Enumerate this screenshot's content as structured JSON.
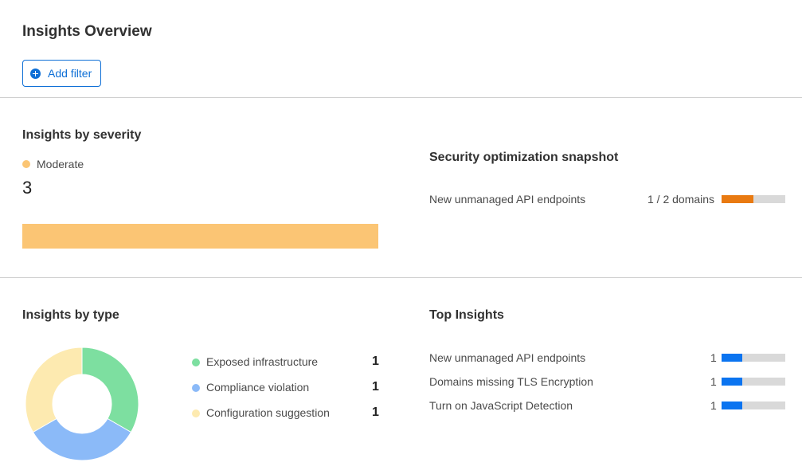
{
  "header": {
    "title": "Insights Overview",
    "add_filter": "Add filter",
    "add_icon": "plus-circle-icon"
  },
  "severity": {
    "title": "Insights by severity",
    "legend": "Moderate",
    "count": "3",
    "color": "#fbc574"
  },
  "snapshot": {
    "title": "Security optimization snapshot",
    "items": [
      {
        "label": "New unmanaged API endpoints",
        "value": "1 / 2 domains",
        "fraction": 0.5,
        "color": "#e97a11"
      }
    ]
  },
  "by_type": {
    "title": "Insights by type",
    "items": [
      {
        "label": "Exposed infrastructure",
        "count": "1",
        "value": 1,
        "color": "#7ddfa0"
      },
      {
        "label": "Compliance violation",
        "count": "1",
        "value": 1,
        "color": "#8bbaf8"
      },
      {
        "label": "Configuration suggestion",
        "count": "1",
        "value": 1,
        "color": "#fdeab0"
      }
    ]
  },
  "top": {
    "title": "Top Insights",
    "color": "#0b74f0",
    "items": [
      {
        "label": "New unmanaged API endpoints",
        "count": "1",
        "fraction": 0.33
      },
      {
        "label": "Domains missing TLS Encryption",
        "count": "1",
        "fraction": 0.33
      },
      {
        "label": "Turn on JavaScript Detection",
        "count": "1",
        "fraction": 0.33
      }
    ]
  }
}
